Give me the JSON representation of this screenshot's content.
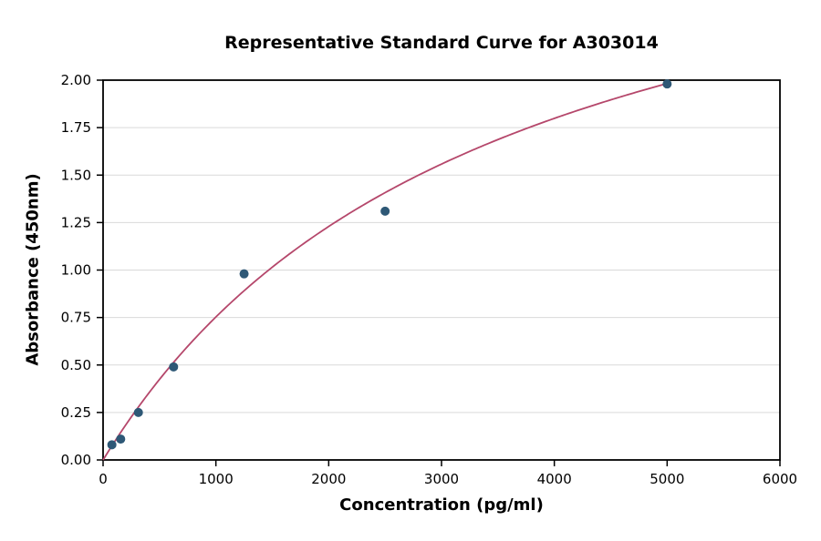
{
  "chart_data": {
    "type": "scatter",
    "title": "Representative Standard Curve for A303014",
    "xlabel": "Concentration (pg/ml)",
    "ylabel": "Absorbance (450nm)",
    "xlim": [
      0,
      6000
    ],
    "ylim": [
      0,
      2.0
    ],
    "x_ticks": [
      0,
      1000,
      2000,
      3000,
      4000,
      5000,
      6000
    ],
    "y_ticks": [
      0.0,
      0.25,
      0.5,
      0.75,
      1.0,
      1.25,
      1.5,
      1.75,
      2.0
    ],
    "grid": "horizontal",
    "legend": "none",
    "points": {
      "x": [
        78,
        156,
        313,
        625,
        1250,
        2500,
        5000
      ],
      "y": [
        0.08,
        0.11,
        0.25,
        0.49,
        0.98,
        1.31,
        1.98
      ]
    },
    "fit_curve": {
      "model": "saturating (y = vmax*x/(k+x))",
      "vmax": 3.35,
      "k": 3450,
      "x_start": 0,
      "x_end": 5000
    },
    "colors": {
      "point": "#2e5876",
      "curve": "#b5476b",
      "grid": "#d9d9d9",
      "axis": "#000000",
      "background": "#ffffff"
    }
  }
}
